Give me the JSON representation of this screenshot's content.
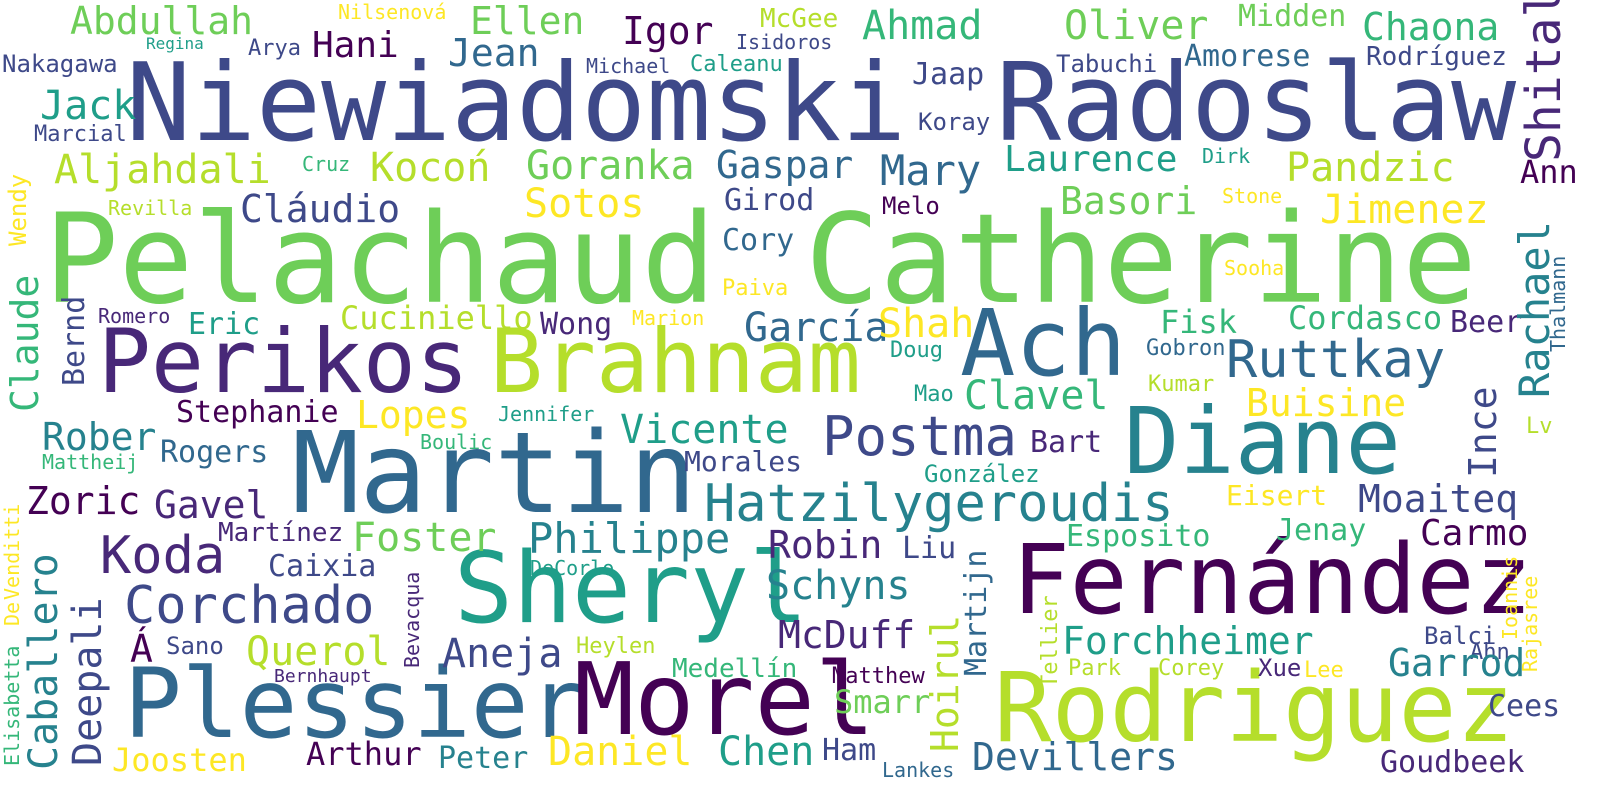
{
  "words": {
    "pelachaud": "Pelachaud",
    "catherine": "Catherine",
    "niewiadomski": "Niewiadomski",
    "radoslaw": "Radoslaw",
    "perikos": "Perikos",
    "brahnam": "Brahnam",
    "ach": "Ach",
    "martin": "Martin",
    "diane": "Diane",
    "sheryl": "Sheryl",
    "fernandez": "Fernández",
    "plessier": "Plessier",
    "morel": "Morel",
    "rodriguez": "Rodriguez",
    "hatzilygeroudis": "Hatzilygeroudis",
    "postma": "Postma",
    "ruttkay": "Ruttkay",
    "corchado": "Corchado",
    "koda": "Koda",
    "philippe": "Philippe",
    "forchheimer": "Forchheimer",
    "abdullah": "Abdullah",
    "ellen": "Ellen",
    "igor": "Igor",
    "ahmad": "Ahmad",
    "oliver": "Oliver",
    "chaona": "Chaona",
    "hani": "Hani",
    "jean": "Jean",
    "jack": "Jack",
    "aljahdali": "Aljahdali",
    "kocon": "Kocoń",
    "goranka": "Goranka",
    "gaspar": "Gaspar",
    "mary": "Mary",
    "laurence": "Laurence",
    "pandzic": "Pandzic",
    "sotos": "Sotos",
    "basori": "Basori",
    "jimenez": "Jimenez",
    "claudio": "Cláudio",
    "girod": "Girod",
    "cory": "Cory",
    "garcia": "García",
    "shah": "Shah",
    "cuciniello": "Cuciniello",
    "wong": "Wong",
    "eric": "Eric",
    "fisk": "Fisk",
    "cordasco": "Cordasco",
    "beer": "Beer",
    "stephanie": "Stephanie",
    "lopes": "Lopes",
    "clavel": "Clavel",
    "buisine": "Buisine",
    "rober": "Rober",
    "rogers": "Rogers",
    "vicente": "Vicente",
    "bart": "Bart",
    "morales": "Morales",
    "zoric": "Zoric",
    "gavel": "Gavel",
    "moaiteq": "Moaiteq",
    "carmo": "Carmo",
    "foster": "Foster",
    "robin": "Robin",
    "liu": "Liu",
    "esposito": "Esposito",
    "jenay": "Jenay",
    "martinez": "Martínez",
    "caixia": "Caixia",
    "schyns": "Schyns",
    "mcduff": "McDuff",
    "querol": "Querol",
    "aneja": "Aneja",
    "garrod": "Garrod",
    "a_accent": "Á",
    "sano": "Sano",
    "heylen": "Heylen",
    "medellin": "Medellín",
    "matthew": "Matthew",
    "smarr": "Smarr",
    "xue": "Xue",
    "lee": "Lee",
    "park": "Park",
    "corey": "Corey",
    "balci": "Balci",
    "ahn": "Ahn",
    "cees": "Cees",
    "joosten": "Joosten",
    "arthur": "Arthur",
    "peter": "Peter",
    "daniel": "Daniel",
    "chen": "Chen",
    "ham": "Ham",
    "devillers": "Devillers",
    "lankes": "Lankes",
    "goudbeek": "Goudbeek",
    "nakagawa": "Nakagawa",
    "regina": "Regina",
    "arya": "Arya",
    "nilsenova": "Nilsenová",
    "mcgee": "McGee",
    "isidoros": "Isidoros",
    "michael": "Michael",
    "caleanu": "Caleanu",
    "tabuchi": "Tabuchi",
    "amorese": "Amorese",
    "rodriguez_acc": "Rodríguez",
    "midden": "Midden",
    "jaap": "Jaap",
    "koray": "Koray",
    "marcial": "Marcial",
    "cruz": "Cruz",
    "dirk": "Dirk",
    "ann": "Ann",
    "revilla": "Revilla",
    "melo": "Melo",
    "stone": "Stone",
    "sooha": "Sooha",
    "paiva": "Paiva",
    "romero": "Romero",
    "marion": "Marion",
    "doug": "Doug",
    "gobron": "Gobron",
    "mao": "Mao",
    "kumar": "Kumar",
    "jennifer": "Jennifer",
    "boulic": "Boulic",
    "mattheij": "Mattheij",
    "gonzalez": "González",
    "eisert": "Eisert",
    "lv": "Lv",
    "decorlo": "DeCorlo",
    "bernhaupt": "Bernhaupt",
    "shital": "Shital",
    "rachael": "Rachael",
    "thalmann": "Thalmann",
    "ince": "Ince",
    "wendy": "Wendy",
    "claude": "Claude",
    "bernd": "Bernd",
    "caballero": "Caballero",
    "deepali": "Deepali",
    "venditti": "Venditti",
    "elisabetta": "Elisabetta",
    "de": "De",
    "bevacqua": "Bevacqua",
    "hoirul": "Hoirul",
    "martijn": "Martijn",
    "tellier": "Tellier",
    "ioannis": "Ioannis",
    "rajasree": "Rajasree"
  }
}
